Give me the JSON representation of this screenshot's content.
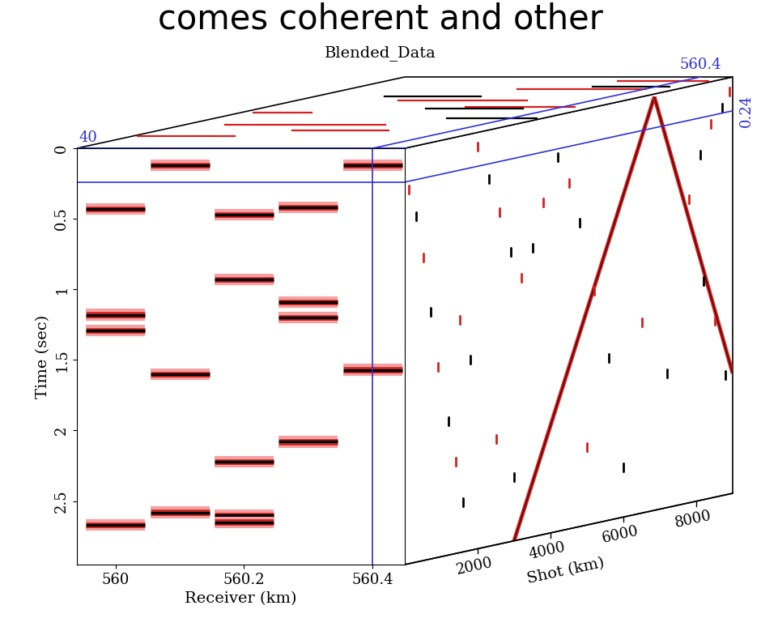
{
  "chart_data": {
    "type": "cube",
    "header_text": "comes coherent and other",
    "title": "Blended_Data",
    "xlabel": "Receiver (km)",
    "ylabel": "Time (sec)",
    "zlabel": "Shot (km)",
    "xlim": [
      559.94,
      560.45
    ],
    "xticks": [
      560,
      560.2,
      560.4
    ],
    "ylim": [
      2.95,
      0
    ],
    "yticks": [
      0,
      0.5,
      1,
      1.5,
      2,
      2.5
    ],
    "zlim": [
      0,
      9000
    ],
    "zticks": [
      2000,
      4000,
      6000,
      8000
    ],
    "slice": {
      "shot": 40,
      "receiver": 560.4,
      "time": 0.24
    },
    "front_traces": [
      {
        "receiver": 560.0,
        "times": [
          0.43,
          1.18,
          1.29,
          2.67
        ]
      },
      {
        "receiver": 560.1,
        "times": [
          0.12,
          1.6,
          2.58
        ]
      },
      {
        "receiver": 560.2,
        "times": [
          0.47,
          0.93,
          2.22,
          2.6,
          2.65
        ]
      },
      {
        "receiver": 560.3,
        "times": [
          0.42,
          1.09,
          1.2,
          2.08
        ]
      },
      {
        "receiver": 560.4,
        "times": [
          0.12,
          1.57
        ]
      }
    ],
    "side_direct": [
      [
        [
          6850,
          0.02
        ],
        [
          3000,
          2.95
        ]
      ],
      [
        [
          6850,
          0.02
        ],
        [
          9000,
          2.1
        ]
      ]
    ],
    "side_blended": [
      [
        100,
        0.3
      ],
      [
        300,
        0.5
      ],
      [
        500,
        0.8
      ],
      [
        700,
        1.2
      ],
      [
        900,
        1.6
      ],
      [
        1200,
        2.0
      ],
      [
        1400,
        2.3
      ],
      [
        1600,
        2.6
      ],
      [
        2000,
        0.1
      ],
      [
        2300,
        0.35
      ],
      [
        2600,
        0.6
      ],
      [
        2900,
        0.9
      ],
      [
        3200,
        1.1
      ],
      [
        3500,
        0.9
      ],
      [
        3800,
        0.6
      ],
      [
        4200,
        0.3
      ],
      [
        4500,
        0.5
      ],
      [
        4800,
        0.8
      ],
      [
        5200,
        1.3
      ],
      [
        5600,
        1.8
      ],
      [
        7800,
        0.8
      ],
      [
        8100,
        0.5
      ],
      [
        8400,
        0.3
      ],
      [
        8700,
        0.2
      ],
      [
        8900,
        0.1
      ],
      [
        8200,
        1.4
      ],
      [
        8500,
        1.7
      ],
      [
        8800,
        2.1
      ],
      [
        1500,
        1.3
      ],
      [
        1800,
        1.6
      ],
      [
        2500,
        2.2
      ],
      [
        3000,
        2.5
      ],
      [
        5000,
        2.4
      ],
      [
        6000,
        2.6
      ],
      [
        6500,
        1.6
      ],
      [
        7200,
        2.0
      ]
    ],
    "top_red": [
      [
        1500,
        559.95,
        560.1
      ],
      [
        3000,
        560.0,
        560.25
      ],
      [
        4500,
        559.96,
        560.05
      ],
      [
        6000,
        560.1,
        560.3
      ],
      [
        7500,
        560.2,
        560.4
      ],
      [
        8500,
        560.3,
        560.44
      ],
      [
        5200,
        560.25,
        560.42
      ],
      [
        2200,
        560.15,
        560.3
      ]
    ],
    "top_black": [
      [
        5000,
        560.2,
        560.35
      ],
      [
        6500,
        560.05,
        560.2
      ],
      [
        7800,
        560.3,
        560.42
      ],
      [
        3800,
        560.3,
        560.44
      ]
    ]
  }
}
